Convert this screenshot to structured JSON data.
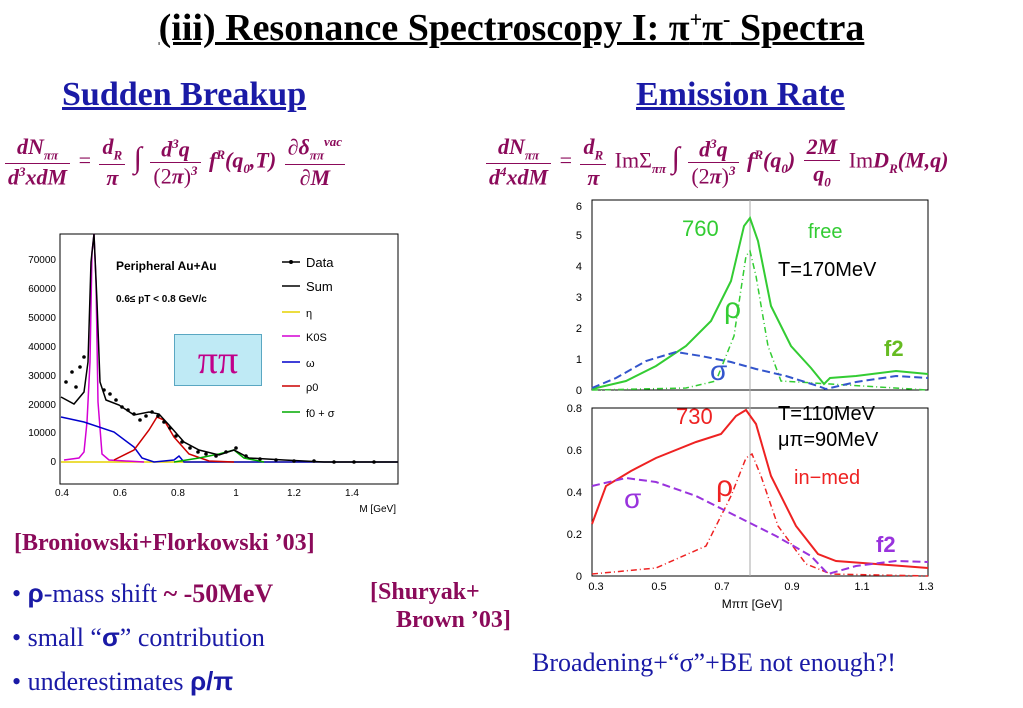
{
  "title": {
    "main": "(iii)  Resonance Spectroscopy I:  π",
    "sup1": "+",
    "mid": "π",
    "sup2": "-",
    "end": " Spectra"
  },
  "left": {
    "heading": "Sudden Breakup",
    "plot": {
      "legend_header": "Peripheral Au+Au",
      "pt_range": "0.6≤ pT < 0.8 GeV/c",
      "xlabel": "M [GeV]",
      "xticks": [
        "0.4",
        "0.6",
        "0.8",
        "1",
        "1.2",
        "1.4"
      ],
      "yticks": [
        "0",
        "10000",
        "20000",
        "30000",
        "40000",
        "50000",
        "60000",
        "70000"
      ],
      "legend": [
        {
          "label": "Data",
          "color": "#000000"
        },
        {
          "label": "Sum",
          "color": "#000000"
        },
        {
          "label": "η",
          "color": "#e6d200"
        },
        {
          "label": "K0S",
          "color": "#d400d4"
        },
        {
          "label": "ω",
          "color": "#0000cc"
        },
        {
          "label": "ρ0",
          "color": "#cc0000"
        },
        {
          "label": "f0 + σ",
          "color": "#00aa00"
        }
      ]
    },
    "pi_box": "ππ",
    "reference": "[Broniowski+Florkowski ’03]",
    "bullets": [
      {
        "pre": "• ",
        "sym": "ρ",
        "text": "-mass shift ",
        "hl": "~ -50MeV"
      },
      {
        "pre": "• small “",
        "sym": "σ",
        "text": "” contribution"
      },
      {
        "pre": "• underestimates ",
        "sym": "ρ/π",
        "text": ""
      }
    ],
    "shuryak_ref": [
      "[Shuryak+",
      "Brown ’03]"
    ]
  },
  "right": {
    "heading": "Emission Rate",
    "top_plot": {
      "yticks": [
        "0",
        "1",
        "2",
        "3",
        "4",
        "5",
        "6"
      ],
      "peak_label": "760",
      "free_label": "free",
      "temp_label": "T=170MeV",
      "rho_label": "ρ",
      "sigma_label": "σ",
      "f2_label": "f2"
    },
    "bottom_plot": {
      "yticks": [
        "0",
        "0.2",
        "0.4",
        "0.6",
        "0.8"
      ],
      "xticks": [
        "0.3",
        "0.5",
        "0.7",
        "0.9",
        "1.1",
        "1.3"
      ],
      "xlabel": "Mππ [GeV]",
      "peak_label": "730",
      "temp_label": "T=110MeV",
      "mu_label": "μπ=90MeV",
      "inmed_label": "in−med",
      "rho_label": "ρ",
      "sigma_label": "σ",
      "f2_label": "f2"
    },
    "note": "Broadening+“σ”+BE not enough?!"
  }
}
